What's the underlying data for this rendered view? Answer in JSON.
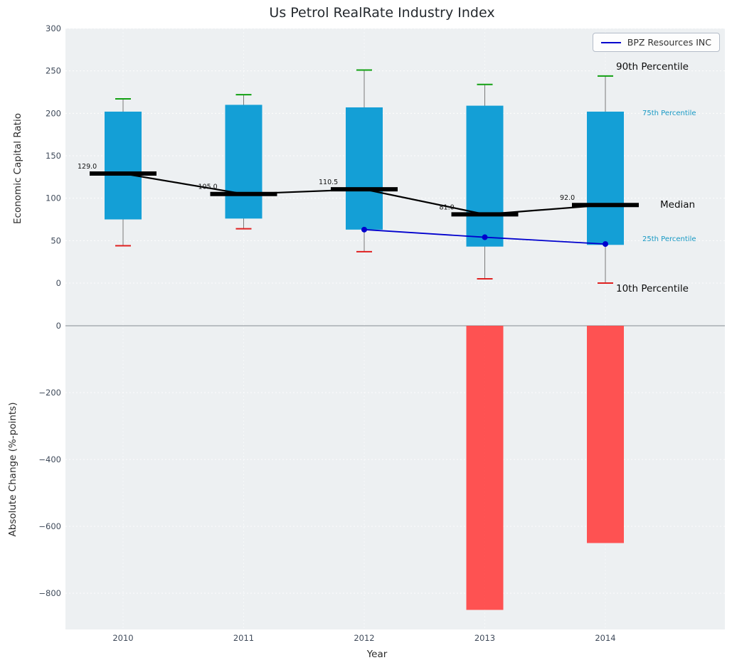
{
  "title": "Us Petrol RealRate Industry Index",
  "legend": {
    "label": "BPZ Resources INC"
  },
  "axes": {
    "xlabel": "Year",
    "x_ticks": [
      "2010",
      "2011",
      "2012",
      "2013",
      "2014"
    ],
    "top": {
      "ylabel": "Economic Capital Ratio",
      "y_ticks": [
        300,
        250,
        200,
        150,
        100,
        50,
        0
      ],
      "y_tick_labels": [
        "300",
        "250",
        "200",
        "150",
        "100",
        "50",
        "0"
      ]
    },
    "bottom": {
      "ylabel": "Absolute Change (%-points)",
      "y_ticks": [
        0,
        -200,
        -400,
        -600,
        -800
      ],
      "y_tick_labels": [
        "0",
        "−200",
        "−400",
        "−600",
        "−800"
      ]
    }
  },
  "annotations": {
    "p90": "90th Percentile",
    "p75": "75th Percentile",
    "median": "Median",
    "p25": "25th Percentile",
    "p10": "10th Percentile"
  },
  "colors": {
    "box": "#149fd6",
    "median_line": "#000000",
    "whisker": "#7a7a7a",
    "cap_90": "#11a011",
    "cap_10": "#e02020",
    "company_line": "#0000cd",
    "neg_bar": "#ff4040",
    "axes_bg": "#edf0f2",
    "zero_line": "#9aa0a6",
    "grid": "#ffffff",
    "percentile_small_label": "#1899c4",
    "tick_label": "#3f4a5a"
  },
  "chart_data": [
    {
      "type": "box",
      "title": "Us Petrol RealRate Industry Index",
      "xlabel": "Year",
      "ylabel": "Economic Capital Ratio",
      "ylim": [
        -35,
        300
      ],
      "grid": true,
      "legend_position": "upper right",
      "categories": [
        2010,
        2011,
        2012,
        2013,
        2014
      ],
      "series": [
        {
          "name": "90th Percentile",
          "values": [
            217,
            222,
            251,
            234,
            244
          ]
        },
        {
          "name": "75th Percentile",
          "values": [
            202,
            210,
            207,
            209,
            202
          ]
        },
        {
          "name": "Median",
          "values": [
            129.0,
            105.0,
            110.5,
            81.0,
            92.0
          ]
        },
        {
          "name": "25th Percentile",
          "values": [
            75,
            76,
            63,
            43,
            45
          ]
        },
        {
          "name": "10th Percentile",
          "values": [
            44,
            64,
            37,
            5,
            0
          ]
        }
      ],
      "median_labels": [
        "129.0",
        "105.0",
        "110.5",
        "81.0",
        "92.0"
      ],
      "overlay_line": {
        "name": "BPZ Resources INC",
        "x": [
          2012,
          2013,
          2014
        ],
        "values": [
          63,
          54,
          46
        ]
      }
    },
    {
      "type": "bar",
      "xlabel": "Year",
      "ylabel": "Absolute Change (%-points)",
      "ylim": [
        -910,
        47
      ],
      "grid": true,
      "categories": [
        2010,
        2011,
        2012,
        2013,
        2014
      ],
      "values": [
        null,
        null,
        null,
        -850,
        -650
      ]
    }
  ]
}
